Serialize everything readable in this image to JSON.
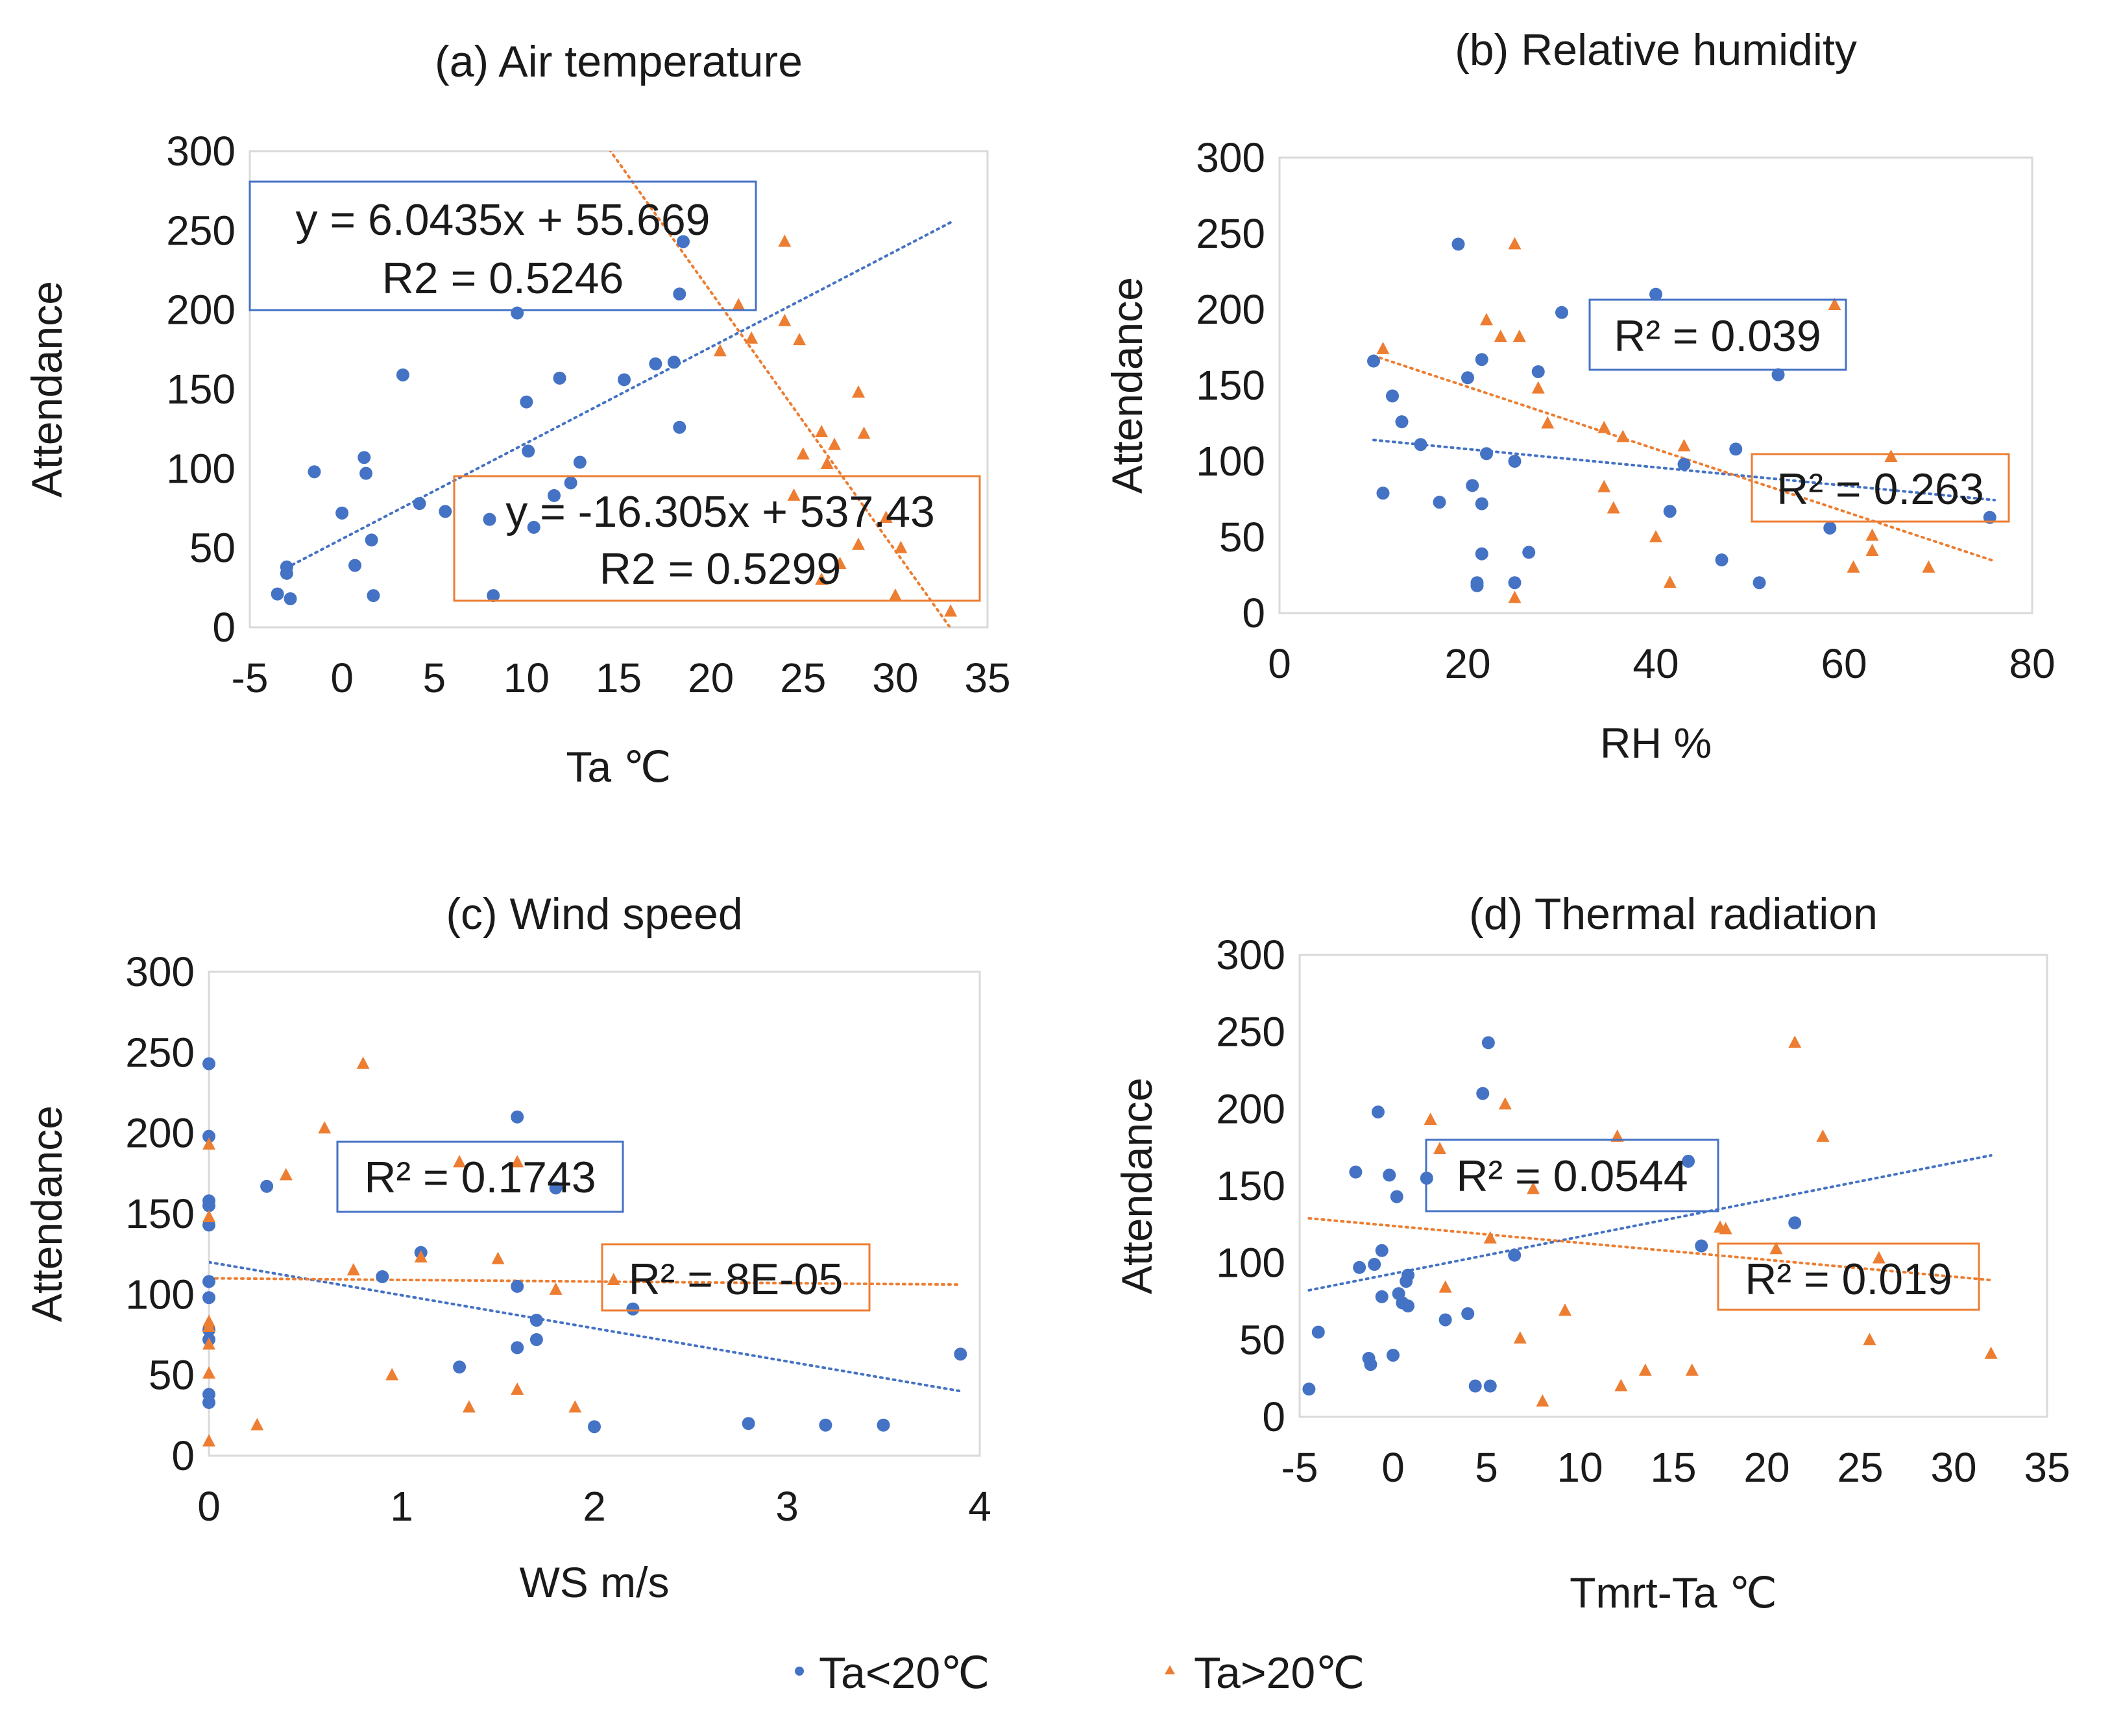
{
  "legend": {
    "series": [
      {
        "name": "Ta<20℃",
        "color": "#4472C4",
        "marker": "circle"
      },
      {
        "name": "Ta>20℃",
        "color": "#ED7D31",
        "marker": "triangle"
      }
    ]
  },
  "chart_data": [
    {
      "type": "scatter",
      "title": "(a) Air temperature",
      "xlabel": "Ta ℃",
      "ylabel": "Attendance",
      "xlim": [
        -5,
        35
      ],
      "ylim": [
        0,
        300
      ],
      "xticks": [
        "-5",
        "0",
        "5",
        "10",
        "15",
        "20",
        "25",
        "30",
        "35"
      ],
      "yticks": [
        "0",
        "50",
        "100",
        "150",
        "200",
        "250",
        "300"
      ],
      "series": [
        {
          "name": "Ta<20℃",
          "points": [
            [
              -3.5,
              21
            ],
            [
              -3,
              34
            ],
            [
              -3,
              38
            ],
            [
              -2.8,
              18
            ],
            [
              -1.5,
              98
            ],
            [
              0,
              72
            ],
            [
              0.7,
              39
            ],
            [
              1.2,
              107
            ],
            [
              1.3,
              97
            ],
            [
              1.6,
              55
            ],
            [
              1.7,
              20
            ],
            [
              3.3,
              159
            ],
            [
              4.2,
              78
            ],
            [
              5.6,
              73
            ],
            [
              8,
              68
            ],
            [
              8.2,
              20
            ],
            [
              9.5,
              198
            ],
            [
              10,
              142
            ],
            [
              10.1,
              111
            ],
            [
              10.4,
              63
            ],
            [
              11.5,
              83
            ],
            [
              11.8,
              157
            ],
            [
              12.4,
              91
            ],
            [
              12.9,
              104
            ],
            [
              15.3,
              156
            ],
            [
              17,
              166
            ],
            [
              18,
              167
            ],
            [
              18.3,
              126
            ],
            [
              18.3,
              210
            ],
            [
              18.5,
              243
            ]
          ]
        },
        {
          "name": "Ta>20℃",
          "points": [
            [
              20.5,
              174
            ],
            [
              21.5,
              203
            ],
            [
              22.2,
              182
            ],
            [
              24,
              193
            ],
            [
              24,
              243
            ],
            [
              24.5,
              83
            ],
            [
              24.8,
              181
            ],
            [
              25,
              109
            ],
            [
              26,
              123
            ],
            [
              26,
              30
            ],
            [
              26.3,
              103
            ],
            [
              26.7,
              115
            ],
            [
              27,
              40
            ],
            [
              28,
              148
            ],
            [
              28,
              52
            ],
            [
              28.3,
              122
            ],
            [
              29.5,
              69
            ],
            [
              30,
              20
            ],
            [
              30.3,
              50
            ],
            [
              33,
              10
            ]
          ]
        }
      ],
      "trendlines": [
        {
          "series": "Ta<20℃",
          "from": -3,
          "to": 33,
          "slope": 6.0435,
          "intercept": 55.669,
          "label": [
            "y = 6.0435x + 55.669",
            "R2 = 0.5246"
          ]
        },
        {
          "series": "Ta>20℃",
          "from": 14.5,
          "to": 33,
          "slope": -16.305,
          "intercept": 537.43,
          "label": [
            "y = -16.305x + 537.43",
            "R2 = 0.5299"
          ]
        }
      ]
    },
    {
      "type": "scatter",
      "title": "(b) Relative humidity",
      "xlabel": "RH %",
      "ylabel": "Attendance",
      "xlim": [
        0,
        80
      ],
      "ylim": [
        0,
        300
      ],
      "xticks": [
        "0",
        "20",
        "40",
        "60",
        "80"
      ],
      "yticks": [
        "0",
        "50",
        "100",
        "150",
        "200",
        "250",
        "300"
      ],
      "series": [
        {
          "name": "Ta<20℃",
          "points": [
            [
              10,
              166
            ],
            [
              11,
              79
            ],
            [
              12,
              143
            ],
            [
              13,
              126
            ],
            [
              15,
              111
            ],
            [
              17,
              73
            ],
            [
              19,
              243
            ],
            [
              20,
              155
            ],
            [
              20.5,
              84
            ],
            [
              21,
              20
            ],
            [
              21,
              18
            ],
            [
              21.5,
              167
            ],
            [
              21.5,
              72
            ],
            [
              21.5,
              39
            ],
            [
              22,
              105
            ],
            [
              25,
              100
            ],
            [
              25,
              20
            ],
            [
              26.5,
              40
            ],
            [
              27.5,
              159
            ],
            [
              30,
              198
            ],
            [
              40,
              210
            ],
            [
              41.5,
              67
            ],
            [
              43,
              98
            ],
            [
              47,
              35
            ],
            [
              48.5,
              108
            ],
            [
              51,
              20
            ],
            [
              53,
              157
            ],
            [
              58.5,
              56
            ],
            [
              75.5,
              63
            ]
          ]
        },
        {
          "name": "Ta>20℃",
          "points": [
            [
              11,
              174
            ],
            [
              22,
              193
            ],
            [
              23.5,
              182
            ],
            [
              25,
              243
            ],
            [
              25,
              10
            ],
            [
              25.5,
              182
            ],
            [
              27.5,
              148
            ],
            [
              28.5,
              125
            ],
            [
              34.5,
              122
            ],
            [
              34.5,
              83
            ],
            [
              35.5,
              69
            ],
            [
              36.5,
              116
            ],
            [
              40,
              50
            ],
            [
              41.5,
              20
            ],
            [
              43,
              110
            ],
            [
              59,
              203
            ],
            [
              61,
              30
            ],
            [
              63,
              51
            ],
            [
              63,
              41
            ],
            [
              65,
              103
            ],
            [
              69,
              30
            ]
          ]
        }
      ],
      "trendlines": [
        {
          "series": "Ta<20℃",
          "from": 10,
          "to": 76,
          "slope": -0.6,
          "intercept": 120,
          "label": [
            "R² = 0.039"
          ]
        },
        {
          "series": "Ta>20℃",
          "from": 10,
          "to": 76,
          "slope": -2.05,
          "intercept": 190,
          "label": [
            "R² = 0.263"
          ]
        }
      ]
    },
    {
      "type": "scatter",
      "title": "(c) Wind speed",
      "xlabel": "WS m/s",
      "ylabel": "Attendance",
      "xlim": [
        0,
        4
      ],
      "ylim": [
        0,
        300
      ],
      "xticks": [
        "0",
        "1",
        "2",
        "3",
        "4"
      ],
      "yticks": [
        "0",
        "50",
        "100",
        "150",
        "200",
        "250",
        "300"
      ],
      "series": [
        {
          "name": "Ta<20℃",
          "points": [
            [
              0,
              243
            ],
            [
              0,
              198
            ],
            [
              0,
              158
            ],
            [
              0,
              155
            ],
            [
              0,
              143
            ],
            [
              0,
              108
            ],
            [
              0,
              98
            ],
            [
              0,
              78
            ],
            [
              0,
              72
            ],
            [
              0,
              38
            ],
            [
              0,
              33
            ],
            [
              0.3,
              167
            ],
            [
              0.9,
              111
            ],
            [
              1.1,
              126
            ],
            [
              1.3,
              55
            ],
            [
              1.6,
              210
            ],
            [
              1.6,
              105
            ],
            [
              1.6,
              67
            ],
            [
              1.7,
              84
            ],
            [
              1.7,
              72
            ],
            [
              1.8,
              166
            ],
            [
              2,
              18
            ],
            [
              2.2,
              91
            ],
            [
              2.8,
              20
            ],
            [
              3.2,
              19
            ],
            [
              3.5,
              19
            ],
            [
              3.9,
              63
            ]
          ]
        },
        {
          "name": "Ta>20℃",
          "points": [
            [
              0,
              193
            ],
            [
              0,
              148
            ],
            [
              0,
              83
            ],
            [
              0,
              80
            ],
            [
              0,
              69
            ],
            [
              0,
              51
            ],
            [
              0,
              9
            ],
            [
              0.25,
              19
            ],
            [
              0.4,
              174
            ],
            [
              0.6,
              203
            ],
            [
              0.75,
              115
            ],
            [
              0.8,
              243
            ],
            [
              0.95,
              50
            ],
            [
              1.1,
              123
            ],
            [
              1.3,
              182
            ],
            [
              1.35,
              30
            ],
            [
              1.5,
              122
            ],
            [
              1.6,
              41
            ],
            [
              1.6,
              182
            ],
            [
              1.8,
              103
            ],
            [
              1.9,
              30
            ],
            [
              2.1,
              109
            ]
          ]
        }
      ],
      "trendlines": [
        {
          "series": "Ta<20℃",
          "from": 0,
          "to": 3.9,
          "slope": -20.5,
          "intercept": 120,
          "label": [
            "R² = 0.1743"
          ]
        },
        {
          "series": "Ta>20℃",
          "from": 0,
          "to": 3.9,
          "slope": -1,
          "intercept": 110,
          "label": [
            "R² = 8E-05"
          ]
        }
      ]
    },
    {
      "type": "scatter",
      "title": "(d) Thermal radiation",
      "xlabel": "Tmrt-Ta ℃",
      "ylabel": "Attendance",
      "xlim": [
        -5,
        35
      ],
      "ylim": [
        0,
        300
      ],
      "xticks": [
        "-5",
        "0",
        "5",
        "10",
        "15",
        "20",
        "25",
        "30",
        "35"
      ],
      "yticks": [
        "0",
        "50",
        "100",
        "150",
        "200",
        "250",
        "300"
      ],
      "series": [
        {
          "name": "Ta<20℃",
          "points": [
            [
              -4.5,
              18
            ],
            [
              -4,
              55
            ],
            [
              -2,
              159
            ],
            [
              -1.8,
              97
            ],
            [
              -1.3,
              38
            ],
            [
              -1.2,
              34
            ],
            [
              -1,
              99
            ],
            [
              -0.8,
              198
            ],
            [
              -0.6,
              108
            ],
            [
              -0.6,
              78
            ],
            [
              -0.2,
              157
            ],
            [
              0,
              40
            ],
            [
              0.2,
              143
            ],
            [
              0.3,
              80
            ],
            [
              0.5,
              74
            ],
            [
              0.7,
              88
            ],
            [
              0.8,
              92
            ],
            [
              0.8,
              72
            ],
            [
              1.8,
              155
            ],
            [
              2.8,
              63
            ],
            [
              4,
              67
            ],
            [
              4.4,
              20
            ],
            [
              4.8,
              210
            ],
            [
              5.1,
              243
            ],
            [
              5.2,
              20
            ],
            [
              6.5,
              105
            ],
            [
              15.8,
              166
            ],
            [
              16.5,
              111
            ],
            [
              21.5,
              126
            ]
          ]
        },
        {
          "name": "Ta>20℃",
          "points": [
            [
              2,
              193
            ],
            [
              2.5,
              174
            ],
            [
              2.8,
              84
            ],
            [
              5.2,
              116
            ],
            [
              6,
              203
            ],
            [
              6.8,
              51
            ],
            [
              7.5,
              148
            ],
            [
              8,
              10
            ],
            [
              9.2,
              69
            ],
            [
              12,
              182
            ],
            [
              12.2,
              20
            ],
            [
              13.5,
              30
            ],
            [
              16,
              30
            ],
            [
              17.5,
              123
            ],
            [
              17.8,
              122
            ],
            [
              20.5,
              109
            ],
            [
              21.5,
              243
            ],
            [
              23,
              182
            ],
            [
              25.5,
              50
            ],
            [
              26,
              103
            ],
            [
              32,
              41
            ]
          ]
        }
      ],
      "trendlines": [
        {
          "series": "Ta<20℃",
          "from": -4.5,
          "to": 32,
          "slope": 2.4,
          "intercept": 93,
          "label": [
            "R² = 0.0544"
          ]
        },
        {
          "series": "Ta>20℃",
          "from": -4.5,
          "to": 32,
          "slope": -1.1,
          "intercept": 124,
          "label": [
            "R² = 0.019"
          ]
        }
      ]
    }
  ]
}
